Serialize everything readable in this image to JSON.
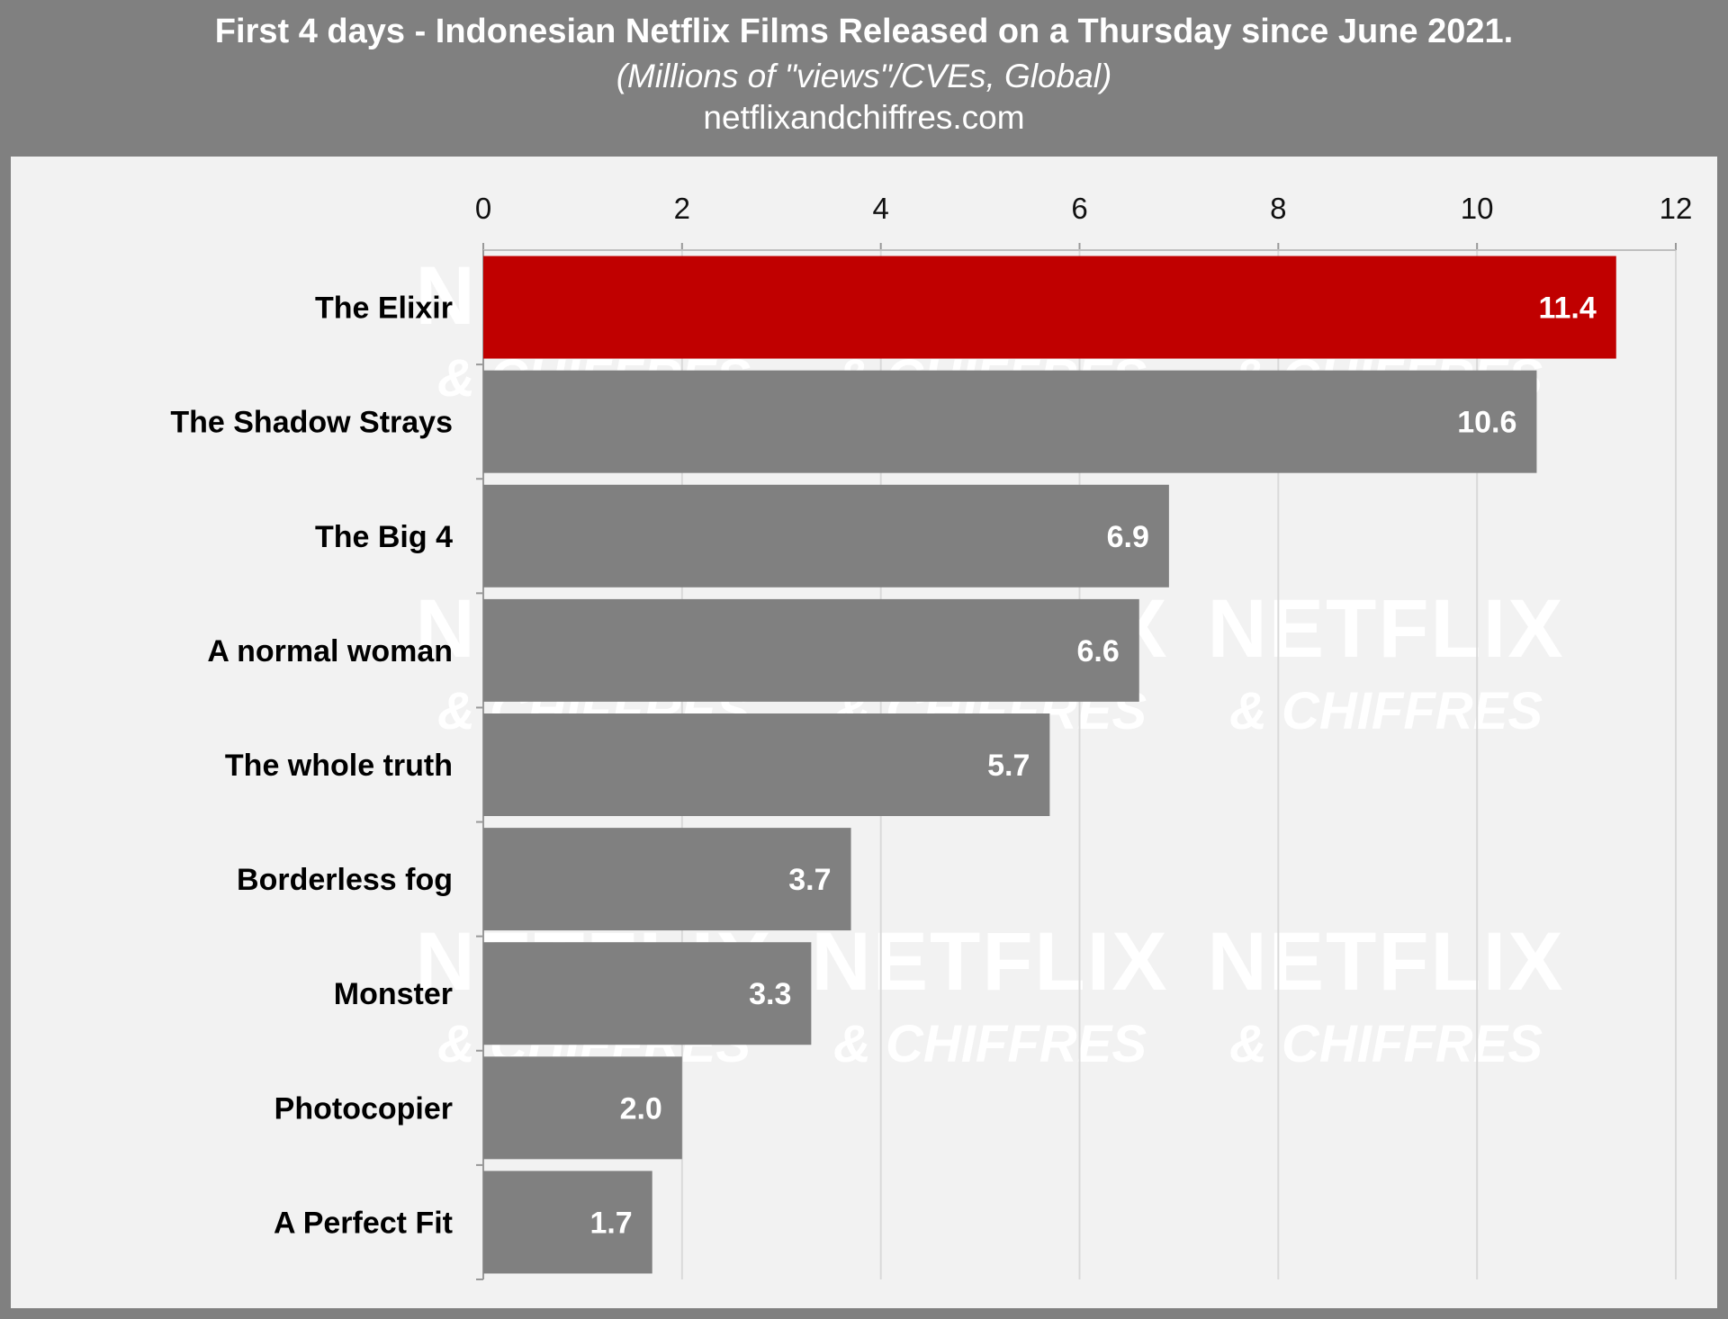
{
  "header": {
    "title": "First 4 days - Indonesian Netflix Films Released on a Thursday since June 2021.",
    "subtitle": "(Millions of \"views\"/CVEs, Global)",
    "source": "netflixandchiffres.com"
  },
  "watermark": {
    "line1": "NETFLIX",
    "line2": "& CHIFFRES"
  },
  "colors": {
    "highlight": "#c00000",
    "bar": "#808080",
    "panel": "#f2f2f2",
    "frame": "#808080",
    "grid": "#d9d9d9"
  },
  "chart_data": {
    "type": "bar",
    "orientation": "horizontal",
    "categories": [
      "The Elixir",
      "The Shadow Strays",
      "The Big 4",
      "A normal woman",
      "The whole truth",
      "Borderless fog",
      "Monster",
      "Photocopier",
      "A Perfect Fit"
    ],
    "values": [
      11.4,
      10.6,
      6.9,
      6.6,
      5.7,
      3.7,
      3.3,
      2.0,
      1.7
    ],
    "value_labels": [
      "11.4",
      "10.6",
      "6.9",
      "6.6",
      "5.7",
      "3.7",
      "3.3",
      "2.0",
      "1.7"
    ],
    "highlighted": [
      "The Elixir"
    ],
    "xlim": [
      0,
      12
    ],
    "xticks": [
      0,
      2,
      4,
      6,
      8,
      10,
      12
    ],
    "x_axis_position": "top",
    "grid": true,
    "legend": "none"
  }
}
